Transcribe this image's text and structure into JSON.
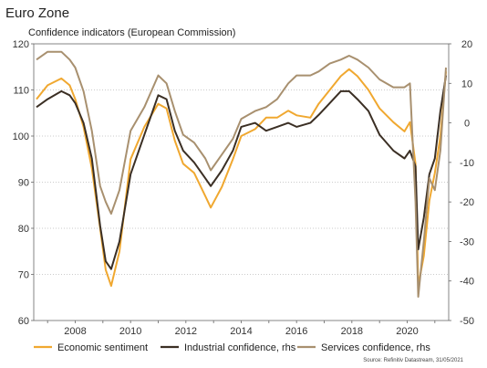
{
  "header": {
    "title": "Euro Zone",
    "subtitle": "Confidence indicators (European Commission)"
  },
  "source": "Source: Refinitiv Datastream, 31/05/2021",
  "chart_data": {
    "type": "line",
    "title": "Euro Zone",
    "subtitle": "Confidence indicators (European Commission)",
    "xlim": [
      2006.5,
      2021.5
    ],
    "x_ticks": [
      "2008",
      "2010",
      "2012",
      "2014",
      "2016",
      "2018",
      "2020"
    ],
    "y_left": {
      "lim": [
        60,
        120
      ],
      "ticks": [
        "60",
        "70",
        "80",
        "90",
        "100",
        "110",
        "120"
      ]
    },
    "y_right": {
      "lim": [
        -50,
        20
      ],
      "ticks": [
        "-50",
        "-40",
        "-30",
        "-20",
        "-10",
        "0",
        "10",
        "20"
      ]
    },
    "grid": true,
    "legend": "bottom",
    "series": [
      {
        "name": "Economic sentiment",
        "axis": "left",
        "color": "#f0a830",
        "x": [
          2006.6,
          2007.0,
          2007.5,
          2007.8,
          2008.0,
          2008.3,
          2008.6,
          2008.9,
          2009.1,
          2009.3,
          2009.6,
          2010.0,
          2010.5,
          2011.0,
          2011.3,
          2011.6,
          2011.9,
          2012.3,
          2012.7,
          2012.9,
          2013.3,
          2013.7,
          2014.0,
          2014.5,
          2014.9,
          2015.3,
          2015.7,
          2016.0,
          2016.5,
          2016.8,
          2017.2,
          2017.6,
          2017.9,
          2018.2,
          2018.6,
          2019.0,
          2019.5,
          2019.9,
          2020.1,
          2020.3,
          2020.4,
          2020.6,
          2020.8,
          2021.0,
          2021.2,
          2021.4
        ],
        "y": [
          108,
          111,
          112.5,
          111,
          108,
          102,
          93,
          80,
          71,
          67.5,
          75,
          95,
          102,
          107,
          106,
          99,
          94,
          92,
          87,
          84.5,
          89,
          95,
          100,
          101.5,
          104,
          104,
          105.5,
          104.5,
          104,
          107,
          110,
          113,
          114.5,
          113,
          110,
          106,
          103,
          101,
          103,
          94,
          67.5,
          74,
          86,
          92,
          100,
          114
        ]
      },
      {
        "name": "Industrial confidence, rhs",
        "axis": "right",
        "color": "#3b2f24",
        "x": [
          2006.6,
          2007.0,
          2007.5,
          2007.8,
          2008.0,
          2008.3,
          2008.6,
          2008.9,
          2009.1,
          2009.3,
          2009.6,
          2010.0,
          2010.5,
          2011.0,
          2011.3,
          2011.6,
          2011.9,
          2012.3,
          2012.7,
          2012.9,
          2013.3,
          2013.7,
          2014.0,
          2014.5,
          2014.9,
          2015.3,
          2015.7,
          2016.0,
          2016.5,
          2016.8,
          2017.2,
          2017.6,
          2017.9,
          2018.2,
          2018.6,
          2019.0,
          2019.5,
          2019.9,
          2020.1,
          2020.3,
          2020.4,
          2020.6,
          2020.8,
          2021.0,
          2021.2,
          2021.4
        ],
        "y": [
          4,
          6,
          8,
          7,
          5,
          0,
          -9,
          -26,
          -35,
          -37,
          -30,
          -13,
          -3,
          7,
          6,
          -2,
          -7,
          -10,
          -14,
          -16,
          -12,
          -7,
          -1,
          0,
          -2,
          -1,
          0,
          -1,
          0,
          2,
          5,
          8,
          8,
          6,
          3,
          -3,
          -7,
          -9,
          -7,
          -11,
          -32,
          -24,
          -13,
          -9,
          3,
          12
        ]
      },
      {
        "name": "Services confidence, rhs",
        "axis": "right",
        "color": "#a8906f",
        "x": [
          2006.6,
          2007.0,
          2007.5,
          2007.8,
          2008.0,
          2008.3,
          2008.6,
          2008.9,
          2009.1,
          2009.3,
          2009.6,
          2010.0,
          2010.5,
          2011.0,
          2011.3,
          2011.6,
          2011.9,
          2012.3,
          2012.7,
          2012.9,
          2013.3,
          2013.7,
          2014.0,
          2014.5,
          2014.9,
          2015.3,
          2015.7,
          2016.0,
          2016.5,
          2016.8,
          2017.2,
          2017.6,
          2017.9,
          2018.2,
          2018.6,
          2019.0,
          2019.5,
          2019.9,
          2020.1,
          2020.3,
          2020.4,
          2020.6,
          2020.8,
          2021.0,
          2021.2,
          2021.4
        ],
        "y": [
          16,
          18,
          18,
          16,
          14,
          8,
          -2,
          -16,
          -20,
          -23,
          -17,
          -2,
          4,
          12,
          10,
          3,
          -3,
          -5,
          -9,
          -12,
          -8,
          -4,
          1,
          3,
          4,
          6,
          10,
          12,
          12,
          13,
          15,
          16,
          17,
          16,
          14,
          11,
          9,
          9,
          10,
          -20,
          -44,
          -30,
          -14,
          -17,
          -7,
          14
        ]
      }
    ]
  }
}
